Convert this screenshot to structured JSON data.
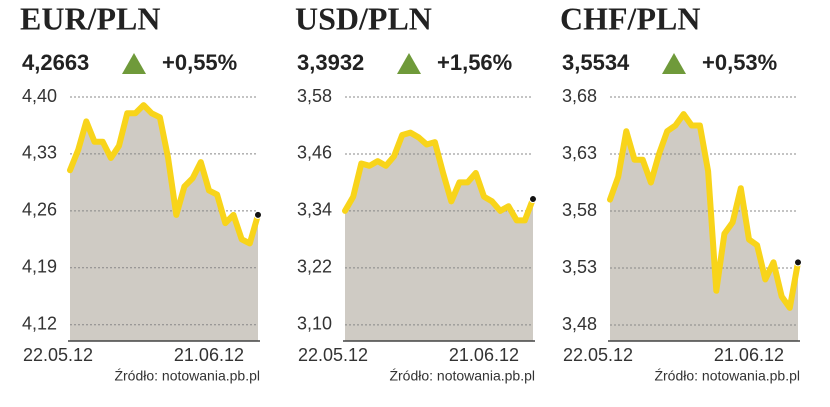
{
  "chart_data": [
    {
      "type": "area",
      "title": "EUR/PLN",
      "value": "4,2663",
      "change": "+0,55%",
      "categories": [
        "22.05.12",
        null,
        null,
        null,
        null,
        null,
        null,
        null,
        null,
        null,
        null,
        null,
        null,
        null,
        null,
        null,
        null,
        "21.06.12",
        null,
        null,
        null,
        null,
        null,
        null
      ],
      "values": [
        4.31,
        4.335,
        4.37,
        4.345,
        4.345,
        4.325,
        4.34,
        4.38,
        4.38,
        4.39,
        4.38,
        4.375,
        4.325,
        4.255,
        4.29,
        4.3,
        4.32,
        4.285,
        4.28,
        4.245,
        4.255,
        4.225,
        4.22,
        4.255
      ],
      "ylim": [
        4.1,
        4.4
      ],
      "yticks": [
        {
          "value": 4.4,
          "label": "4,40"
        },
        {
          "value": 4.33,
          "label": "4,33"
        },
        {
          "value": 4.26,
          "label": "4,26"
        },
        {
          "value": 4.19,
          "label": "4,19"
        },
        {
          "value": 4.12,
          "label": "4,12"
        }
      ],
      "grid": true,
      "line_color": "#f8d41a",
      "area_color": "#cfcbc4",
      "source": "Źródło: notowania.pb.pl"
    },
    {
      "type": "area",
      "title": "USD/PLN",
      "value": "3,3932",
      "change": "+1,56%",
      "categories": [
        "22.05.12",
        null,
        null,
        null,
        null,
        null,
        null,
        null,
        null,
        null,
        null,
        null,
        null,
        null,
        null,
        null,
        null,
        "21.06.12",
        null,
        null,
        null,
        null,
        null,
        null
      ],
      "values": [
        3.34,
        3.37,
        3.44,
        3.435,
        3.445,
        3.435,
        3.455,
        3.5,
        3.505,
        3.495,
        3.48,
        3.485,
        3.42,
        3.36,
        3.4,
        3.4,
        3.42,
        3.37,
        3.36,
        3.34,
        3.35,
        3.32,
        3.32,
        3.365
      ],
      "ylim": [
        3.066,
        3.58
      ],
      "yticks": [
        {
          "value": 3.58,
          "label": "3,58"
        },
        {
          "value": 3.46,
          "label": "3,46"
        },
        {
          "value": 3.34,
          "label": "3,34"
        },
        {
          "value": 3.22,
          "label": "3,22"
        },
        {
          "value": 3.1,
          "label": "3,10"
        }
      ],
      "grid": true,
      "line_color": "#f8d41a",
      "area_color": "#cfcbc4",
      "source": "Źródło: notowania.pb.pl"
    },
    {
      "type": "area",
      "title": "CHF/PLN",
      "value": "3,5534",
      "change": "+0,53%",
      "categories": [
        "22.05.12",
        null,
        null,
        null,
        null,
        null,
        null,
        null,
        null,
        null,
        null,
        null,
        null,
        null,
        null,
        null,
        null,
        "21.06.12",
        null,
        null,
        null,
        null,
        null,
        null
      ],
      "values": [
        3.59,
        3.61,
        3.65,
        3.625,
        3.625,
        3.605,
        3.63,
        3.65,
        3.655,
        3.665,
        3.655,
        3.655,
        3.615,
        3.51,
        3.56,
        3.57,
        3.6,
        3.555,
        3.55,
        3.52,
        3.535,
        3.505,
        3.495,
        3.535
      ],
      "ylim": [
        3.466,
        3.68
      ],
      "yticks": [
        {
          "value": 3.68,
          "label": "3,68"
        },
        {
          "value": 3.63,
          "label": "3,63"
        },
        {
          "value": 3.58,
          "label": "3,58"
        },
        {
          "value": 3.53,
          "label": "3,53"
        },
        {
          "value": 3.48,
          "label": "3,48"
        }
      ],
      "grid": true,
      "line_color": "#f8d41a",
      "area_color": "#cfcbc4",
      "source": "Źródło: notowania.pb.pl"
    }
  ]
}
